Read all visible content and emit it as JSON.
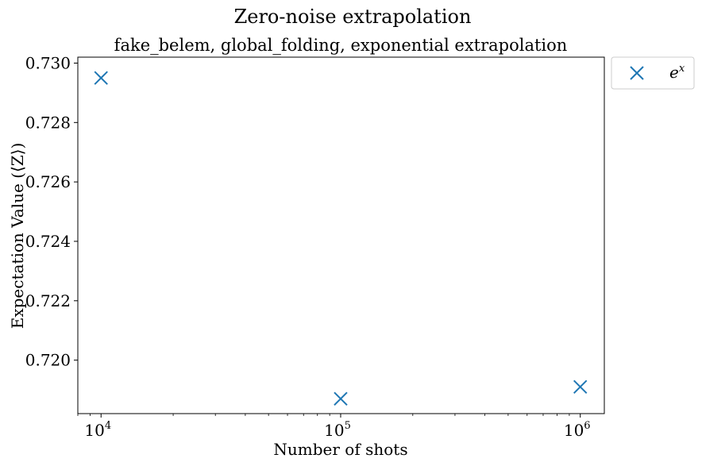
{
  "chart_data": {
    "type": "scatter",
    "title": "Zero-noise extrapolation",
    "subtitle": "fake_belem, global_folding, exponential extrapolation",
    "xlabel": "Number of shots",
    "ylabel": "Expectation Value (⟨Z⟩)",
    "x_scale": "log",
    "xlim": [
      8000,
      1260000
    ],
    "ylim": [
      0.7182,
      0.7302
    ],
    "x_ticks": [
      10000,
      100000,
      1000000
    ],
    "x_tick_labels": [
      {
        "base": "10",
        "exp": "4"
      },
      {
        "base": "10",
        "exp": "5"
      },
      {
        "base": "10",
        "exp": "6"
      }
    ],
    "y_ticks": [
      0.72,
      0.722,
      0.724,
      0.726,
      0.728,
      0.73
    ],
    "y_tick_labels": [
      "0.720",
      "0.722",
      "0.724",
      "0.726",
      "0.728",
      "0.730"
    ],
    "grid": false,
    "legend_placement": "outside-top-right",
    "series": [
      {
        "name": {
          "base": "e",
          "exp": "x"
        },
        "marker": "x",
        "color": "#1f77b4",
        "x": [
          10000,
          100000,
          1000000
        ],
        "y": [
          0.7295,
          0.7187,
          0.7191
        ]
      }
    ]
  }
}
